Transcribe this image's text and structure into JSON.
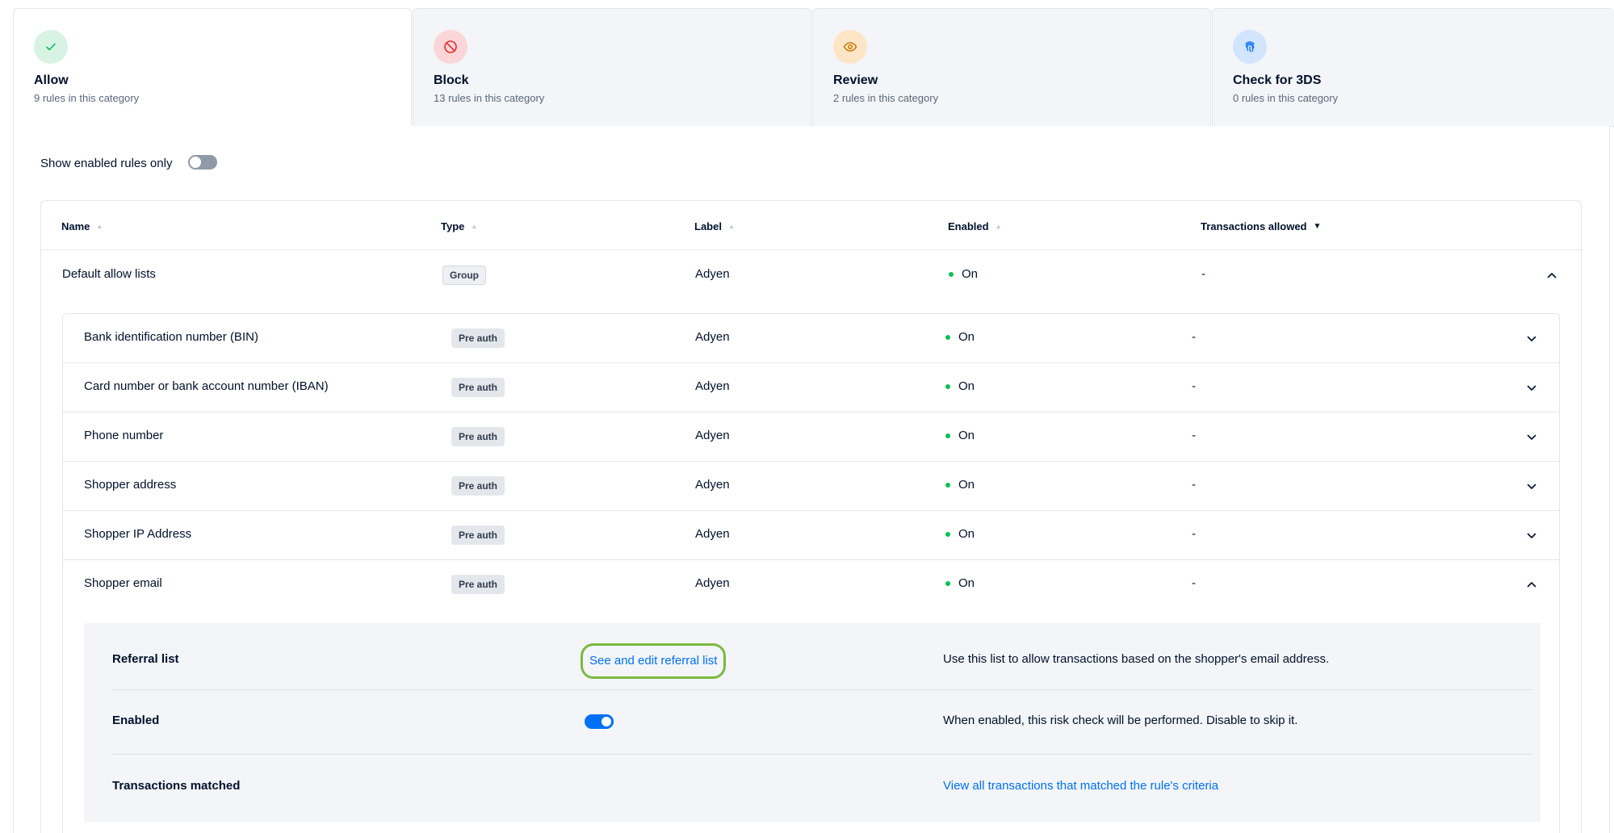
{
  "tabs": [
    {
      "title": "Allow",
      "subtitle": "9 rules in this category",
      "icon": "check-icon",
      "icon_bg": "#d8f3e3",
      "icon_color": "#0abf53",
      "active": true
    },
    {
      "title": "Block",
      "subtitle": "13 rules in this category",
      "icon": "block-icon",
      "icon_bg": "#fbd6d8",
      "icon_color": "#e22d2d"
    },
    {
      "title": "Review",
      "subtitle": "2 rules in this category",
      "icon": "eye-icon",
      "icon_bg": "#fde5c6",
      "icon_color": "#c77700"
    },
    {
      "title": "Check for 3DS",
      "subtitle": "0 rules in this category",
      "icon": "fingerprint-icon",
      "icon_bg": "#d3e4fd",
      "icon_color": "#0070f5"
    }
  ],
  "filter": {
    "label": "Show enabled rules only",
    "enabled": false
  },
  "table": {
    "headers": {
      "name": "Name",
      "type": "Type",
      "label": "Label",
      "enabled": "Enabled",
      "transactions": "Transactions allowed"
    },
    "group": {
      "name": "Default allow lists",
      "type": "Group",
      "label": "Adyen",
      "enabled": "On",
      "transactions": "-"
    },
    "rows": [
      {
        "name": "Bank identification number (BIN)",
        "type": "Pre auth",
        "label": "Adyen",
        "enabled": "On",
        "transactions": "-"
      },
      {
        "name": "Card number or bank account number (IBAN)",
        "type": "Pre auth",
        "label": "Adyen",
        "enabled": "On",
        "transactions": "-"
      },
      {
        "name": "Phone number",
        "type": "Pre auth",
        "label": "Adyen",
        "enabled": "On",
        "transactions": "-"
      },
      {
        "name": "Shopper address",
        "type": "Pre auth",
        "label": "Adyen",
        "enabled": "On",
        "transactions": "-"
      },
      {
        "name": "Shopper IP Address",
        "type": "Pre auth",
        "label": "Adyen",
        "enabled": "On",
        "transactions": "-"
      },
      {
        "name": "Shopper email",
        "type": "Pre auth",
        "label": "Adyen",
        "enabled": "On",
        "transactions": "-"
      }
    ]
  },
  "detail": {
    "referral_label": "Referral list",
    "referral_link": "See and edit referral list",
    "referral_desc": "Use this list to allow transactions based on the shopper's email address.",
    "enabled_label": "Enabled",
    "enabled_desc": "When enabled, this risk check will be performed. Disable to skip it.",
    "matched_label": "Transactions matched",
    "matched_link": "View all transactions that matched the rule's criteria"
  },
  "colors": {
    "accent": "#0070f5",
    "status_on": "#0abf53",
    "highlight": "#7bb940"
  }
}
